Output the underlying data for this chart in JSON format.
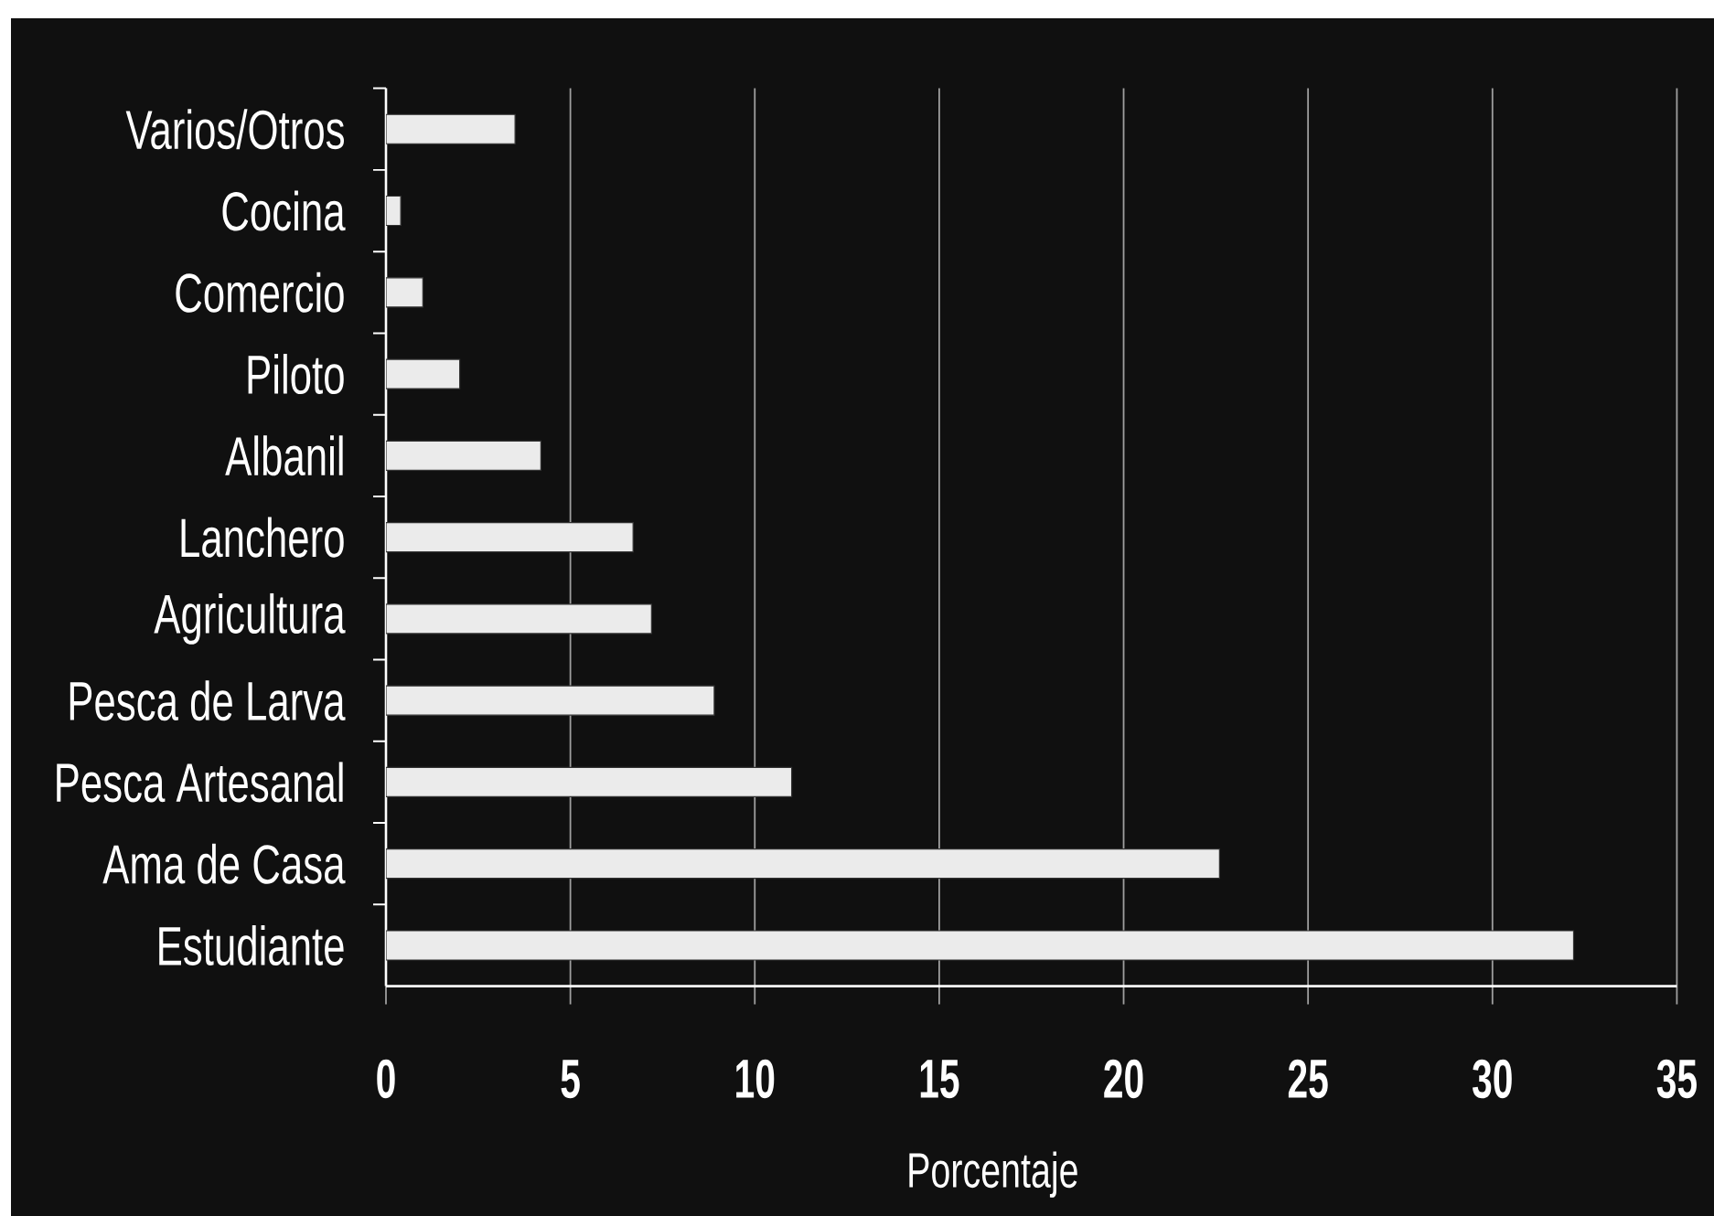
{
  "chart_data": {
    "type": "bar",
    "orientation": "horizontal",
    "categories": [
      "Varios/Otros",
      "Cocina",
      "Comercio",
      "Piloto",
      "Albanil",
      "Lanchero",
      "Agricultura",
      "Pesca de Larva",
      "Pesca Artesanal",
      "Ama de Casa",
      "Estudiante"
    ],
    "values": [
      3.5,
      0.4,
      1.0,
      2.0,
      4.2,
      6.7,
      7.2,
      8.9,
      11.0,
      22.6,
      32.2
    ],
    "color": "#ebebeb",
    "xlabel": "Porcentaje",
    "xlim": [
      0,
      35
    ],
    "xticks": [
      0,
      5,
      10,
      15,
      20,
      25,
      30,
      35
    ],
    "grid": "x"
  }
}
